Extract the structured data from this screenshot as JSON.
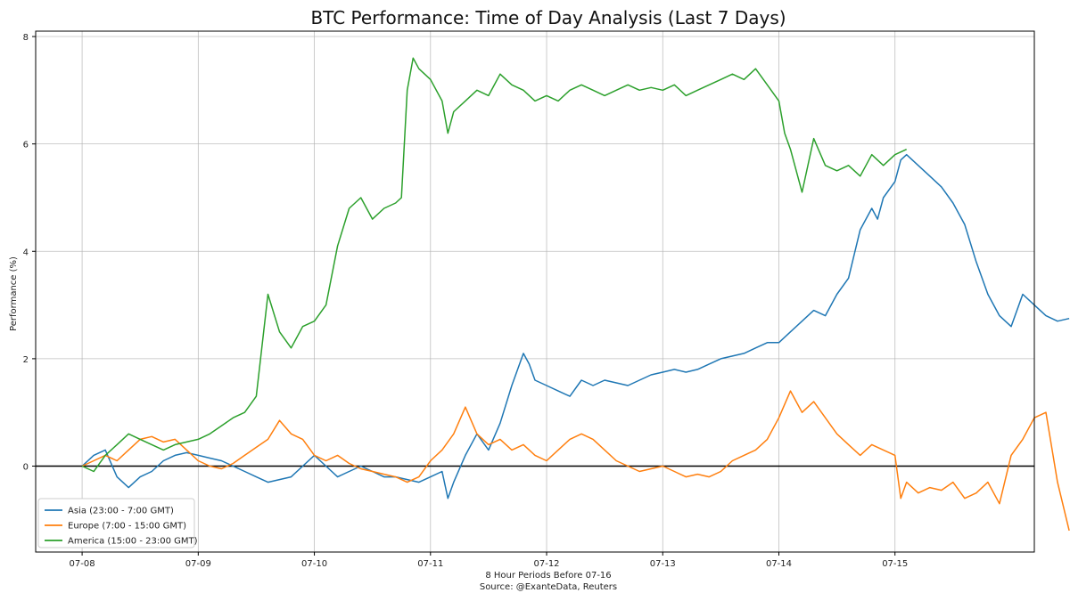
{
  "chart_data": {
    "type": "line",
    "title": "BTC Performance: Time of Day Analysis (Last 7 Days)",
    "xlabel": "8 Hour Periods Before 07-16",
    "xlabel_source": "Source: @ExanteData, Reuters",
    "ylabel": "Performance (%)",
    "x_ticks": [
      "07-08",
      "07-09",
      "07-10",
      "07-11",
      "07-12",
      "07-13",
      "07-14",
      "07-15"
    ],
    "xlim": [
      -0.4,
      8.2
    ],
    "ylim": [
      -1.6,
      8.1
    ],
    "y_ticks": [
      0,
      2,
      4,
      6,
      8
    ],
    "grid": true,
    "zero_line": true,
    "legend_position": "lower-left",
    "series": [
      {
        "name": "Asia (23:00 - 7:00 GMT)",
        "color": "#1f77b4",
        "points": [
          [
            0.0,
            0.0
          ],
          [
            0.1,
            0.2
          ],
          [
            0.2,
            0.3
          ],
          [
            0.3,
            -0.2
          ],
          [
            0.4,
            -0.4
          ],
          [
            0.5,
            -0.2
          ],
          [
            0.6,
            -0.1
          ],
          [
            0.7,
            0.1
          ],
          [
            0.8,
            0.2
          ],
          [
            0.9,
            0.25
          ],
          [
            1.0,
            0.2
          ],
          [
            1.1,
            0.15
          ],
          [
            1.2,
            0.1
          ],
          [
            1.3,
            0.0
          ],
          [
            1.4,
            -0.1
          ],
          [
            1.5,
            -0.2
          ],
          [
            1.6,
            -0.3
          ],
          [
            1.7,
            -0.25
          ],
          [
            1.8,
            -0.2
          ],
          [
            1.9,
            0.0
          ],
          [
            2.0,
            0.2
          ],
          [
            2.1,
            0.0
          ],
          [
            2.2,
            -0.2
          ],
          [
            2.3,
            -0.1
          ],
          [
            2.4,
            0.0
          ],
          [
            2.5,
            -0.1
          ],
          [
            2.6,
            -0.2
          ],
          [
            2.7,
            -0.2
          ],
          [
            2.8,
            -0.25
          ],
          [
            2.9,
            -0.3
          ],
          [
            3.0,
            -0.2
          ],
          [
            3.1,
            -0.1
          ],
          [
            3.15,
            -0.6
          ],
          [
            3.2,
            -0.3
          ],
          [
            3.3,
            0.2
          ],
          [
            3.4,
            0.6
          ],
          [
            3.5,
            0.3
          ],
          [
            3.6,
            0.8
          ],
          [
            3.7,
            1.5
          ],
          [
            3.8,
            2.1
          ],
          [
            3.85,
            1.9
          ],
          [
            3.9,
            1.6
          ],
          [
            4.0,
            1.5
          ],
          [
            4.1,
            1.4
          ],
          [
            4.2,
            1.3
          ],
          [
            4.3,
            1.6
          ],
          [
            4.4,
            1.5
          ],
          [
            4.5,
            1.6
          ],
          [
            4.6,
            1.55
          ],
          [
            4.7,
            1.5
          ],
          [
            4.8,
            1.6
          ],
          [
            4.9,
            1.7
          ],
          [
            5.0,
            1.75
          ],
          [
            5.1,
            1.8
          ],
          [
            5.2,
            1.75
          ],
          [
            5.3,
            1.8
          ],
          [
            5.4,
            1.9
          ],
          [
            5.5,
            2.0
          ],
          [
            5.6,
            2.05
          ],
          [
            5.7,
            2.1
          ],
          [
            5.8,
            2.2
          ],
          [
            5.9,
            2.3
          ],
          [
            6.0,
            2.3
          ],
          [
            6.1,
            2.5
          ],
          [
            6.2,
            2.7
          ],
          [
            6.3,
            2.9
          ],
          [
            6.4,
            2.8
          ],
          [
            6.5,
            3.2
          ],
          [
            6.6,
            3.5
          ],
          [
            6.7,
            4.4
          ],
          [
            6.8,
            4.8
          ],
          [
            6.85,
            4.6
          ],
          [
            6.9,
            5.0
          ],
          [
            7.0,
            5.3
          ],
          [
            7.05,
            5.7
          ],
          [
            7.1,
            5.8
          ],
          [
            7.2,
            5.6
          ],
          [
            7.3,
            5.4
          ],
          [
            7.4,
            5.2
          ],
          [
            7.5,
            4.9
          ],
          [
            7.6,
            4.5
          ],
          [
            7.7,
            3.8
          ],
          [
            7.8,
            3.2
          ],
          [
            7.9,
            2.8
          ],
          [
            8.0,
            2.6
          ],
          [
            8.1,
            3.2
          ],
          [
            8.2,
            3.0
          ],
          [
            8.3,
            2.8
          ],
          [
            8.4,
            2.7
          ],
          [
            8.5,
            2.75
          ]
        ]
      },
      {
        "name": "Europe (7:00 - 15:00 GMT)",
        "color": "#ff7f0e",
        "points": [
          [
            0.0,
            0.0
          ],
          [
            0.1,
            0.1
          ],
          [
            0.2,
            0.2
          ],
          [
            0.3,
            0.1
          ],
          [
            0.4,
            0.3
          ],
          [
            0.5,
            0.5
          ],
          [
            0.6,
            0.55
          ],
          [
            0.7,
            0.45
          ],
          [
            0.8,
            0.5
          ],
          [
            0.9,
            0.3
          ],
          [
            1.0,
            0.1
          ],
          [
            1.1,
            0.0
          ],
          [
            1.2,
            -0.05
          ],
          [
            1.3,
            0.05
          ],
          [
            1.4,
            0.2
          ],
          [
            1.5,
            0.35
          ],
          [
            1.6,
            0.5
          ],
          [
            1.7,
            0.85
          ],
          [
            1.8,
            0.6
          ],
          [
            1.9,
            0.5
          ],
          [
            2.0,
            0.2
          ],
          [
            2.1,
            0.1
          ],
          [
            2.2,
            0.2
          ],
          [
            2.3,
            0.05
          ],
          [
            2.4,
            -0.05
          ],
          [
            2.5,
            -0.1
          ],
          [
            2.6,
            -0.15
          ],
          [
            2.7,
            -0.2
          ],
          [
            2.8,
            -0.3
          ],
          [
            2.9,
            -0.2
          ],
          [
            3.0,
            0.1
          ],
          [
            3.1,
            0.3
          ],
          [
            3.2,
            0.6
          ],
          [
            3.3,
            1.1
          ],
          [
            3.4,
            0.6
          ],
          [
            3.5,
            0.4
          ],
          [
            3.6,
            0.5
          ],
          [
            3.7,
            0.3
          ],
          [
            3.8,
            0.4
          ],
          [
            3.9,
            0.2
          ],
          [
            4.0,
            0.1
          ],
          [
            4.1,
            0.3
          ],
          [
            4.2,
            0.5
          ],
          [
            4.3,
            0.6
          ],
          [
            4.4,
            0.5
          ],
          [
            4.5,
            0.3
          ],
          [
            4.6,
            0.1
          ],
          [
            4.7,
            0.0
          ],
          [
            4.8,
            -0.1
          ],
          [
            4.9,
            -0.05
          ],
          [
            5.0,
            0.0
          ],
          [
            5.1,
            -0.1
          ],
          [
            5.2,
            -0.2
          ],
          [
            5.3,
            -0.15
          ],
          [
            5.4,
            -0.2
          ],
          [
            5.5,
            -0.1
          ],
          [
            5.6,
            0.1
          ],
          [
            5.7,
            0.2
          ],
          [
            5.8,
            0.3
          ],
          [
            5.9,
            0.5
          ],
          [
            6.0,
            0.9
          ],
          [
            6.1,
            1.4
          ],
          [
            6.2,
            1.0
          ],
          [
            6.3,
            1.2
          ],
          [
            6.4,
            0.9
          ],
          [
            6.5,
            0.6
          ],
          [
            6.6,
            0.4
          ],
          [
            6.7,
            0.2
          ],
          [
            6.8,
            0.4
          ],
          [
            6.9,
            0.3
          ],
          [
            7.0,
            0.2
          ],
          [
            7.05,
            -0.6
          ],
          [
            7.1,
            -0.3
          ],
          [
            7.2,
            -0.5
          ],
          [
            7.3,
            -0.4
          ],
          [
            7.4,
            -0.45
          ],
          [
            7.5,
            -0.3
          ],
          [
            7.6,
            -0.6
          ],
          [
            7.7,
            -0.5
          ],
          [
            7.8,
            -0.3
          ],
          [
            7.9,
            -0.7
          ],
          [
            8.0,
            0.2
          ],
          [
            8.1,
            0.5
          ],
          [
            8.2,
            0.9
          ],
          [
            8.3,
            1.0
          ],
          [
            8.4,
            -0.3
          ],
          [
            8.5,
            -1.2
          ]
        ]
      },
      {
        "name": "America (15:00 - 23:00 GMT)",
        "color": "#2ca02c",
        "points": [
          [
            0.0,
            0.0
          ],
          [
            0.1,
            -0.1
          ],
          [
            0.2,
            0.2
          ],
          [
            0.3,
            0.4
          ],
          [
            0.4,
            0.6
          ],
          [
            0.5,
            0.5
          ],
          [
            0.6,
            0.4
          ],
          [
            0.7,
            0.3
          ],
          [
            0.8,
            0.4
          ],
          [
            0.9,
            0.45
          ],
          [
            1.0,
            0.5
          ],
          [
            1.1,
            0.6
          ],
          [
            1.2,
            0.75
          ],
          [
            1.3,
            0.9
          ],
          [
            1.4,
            1.0
          ],
          [
            1.5,
            1.3
          ],
          [
            1.6,
            3.2
          ],
          [
            1.7,
            2.5
          ],
          [
            1.8,
            2.2
          ],
          [
            1.9,
            2.6
          ],
          [
            2.0,
            2.7
          ],
          [
            2.1,
            3.0
          ],
          [
            2.2,
            4.1
          ],
          [
            2.3,
            4.8
          ],
          [
            2.4,
            5.0
          ],
          [
            2.5,
            4.6
          ],
          [
            2.6,
            4.8
          ],
          [
            2.7,
            4.9
          ],
          [
            2.75,
            5.0
          ],
          [
            2.8,
            7.0
          ],
          [
            2.85,
            7.6
          ],
          [
            2.9,
            7.4
          ],
          [
            3.0,
            7.2
          ],
          [
            3.1,
            6.8
          ],
          [
            3.15,
            6.2
          ],
          [
            3.2,
            6.6
          ],
          [
            3.3,
            6.8
          ],
          [
            3.4,
            7.0
          ],
          [
            3.5,
            6.9
          ],
          [
            3.6,
            7.3
          ],
          [
            3.7,
            7.1
          ],
          [
            3.8,
            7.0
          ],
          [
            3.9,
            6.8
          ],
          [
            4.0,
            6.9
          ],
          [
            4.1,
            6.8
          ],
          [
            4.2,
            7.0
          ],
          [
            4.3,
            7.1
          ],
          [
            4.4,
            7.0
          ],
          [
            4.5,
            6.9
          ],
          [
            4.6,
            7.0
          ],
          [
            4.7,
            7.1
          ],
          [
            4.8,
            7.0
          ],
          [
            4.9,
            7.05
          ],
          [
            5.0,
            7.0
          ],
          [
            5.1,
            7.1
          ],
          [
            5.2,
            6.9
          ],
          [
            5.3,
            7.0
          ],
          [
            5.4,
            7.1
          ],
          [
            5.5,
            7.2
          ],
          [
            5.6,
            7.3
          ],
          [
            5.7,
            7.2
          ],
          [
            5.8,
            7.4
          ],
          [
            5.9,
            7.1
          ],
          [
            6.0,
            6.8
          ],
          [
            6.05,
            6.2
          ],
          [
            6.1,
            5.9
          ],
          [
            6.2,
            5.1
          ],
          [
            6.3,
            6.1
          ],
          [
            6.4,
            5.6
          ],
          [
            6.5,
            5.5
          ],
          [
            6.6,
            5.6
          ],
          [
            6.7,
            5.4
          ],
          [
            6.8,
            5.8
          ],
          [
            6.9,
            5.6
          ],
          [
            7.0,
            5.8
          ],
          [
            7.1,
            5.9
          ]
        ]
      }
    ]
  }
}
